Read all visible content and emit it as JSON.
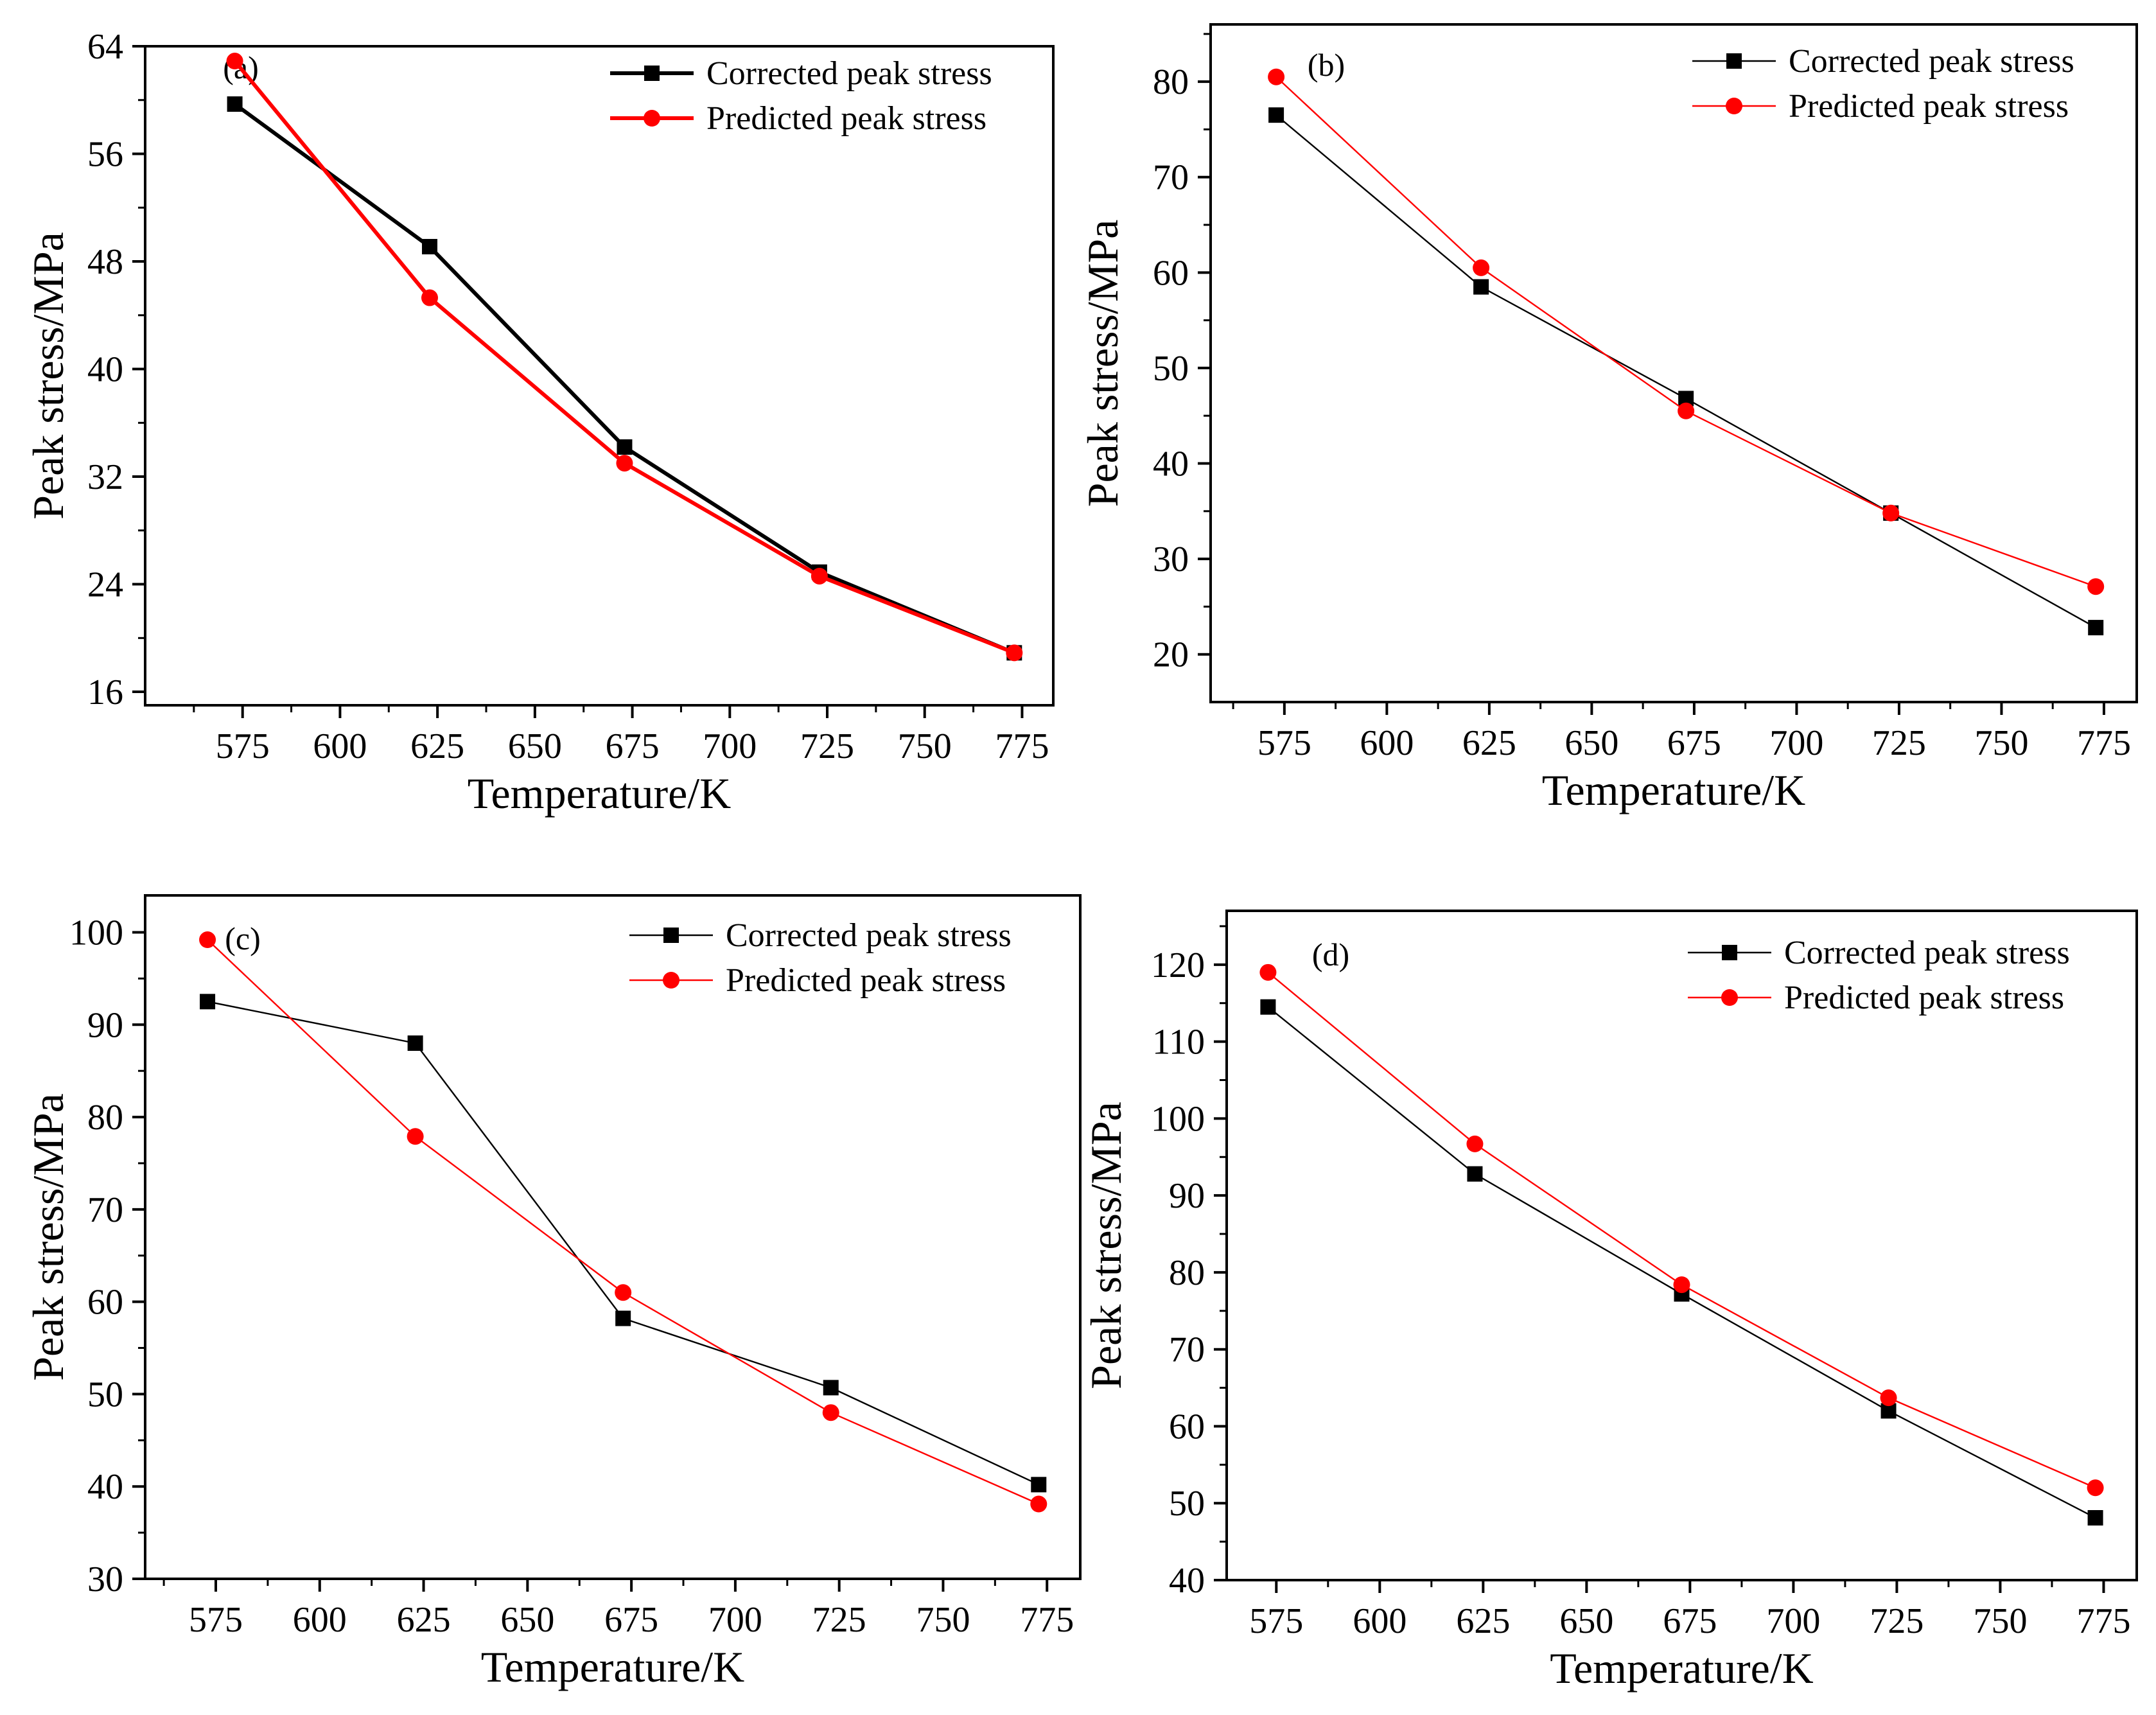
{
  "chart_data": [
    {
      "type": "line",
      "panel_label": "(a)",
      "xlabel": "Temperature/K",
      "ylabel": "Peak stress/MPa",
      "xlim": [
        550,
        783
      ],
      "ylim": [
        15,
        64
      ],
      "xticks": [
        575,
        600,
        625,
        650,
        675,
        700,
        725,
        750,
        775
      ],
      "yticks": [
        16,
        24,
        32,
        40,
        48,
        56,
        64
      ],
      "x": [
        573,
        623,
        673,
        723,
        773
      ],
      "legend_position": "top-right",
      "series": [
        {
          "name": "Corrected peak stress",
          "color": "#000000",
          "marker": "square",
          "values": [
            59.7,
            49.1,
            34.2,
            24.9,
            18.9
          ]
        },
        {
          "name": "Predicted peak stress",
          "color": "#ff0000",
          "marker": "circle",
          "values": [
            62.9,
            45.3,
            33.0,
            24.6,
            18.9
          ]
        }
      ]
    },
    {
      "type": "line",
      "panel_label": "(b)",
      "xlabel": "Temperature/K",
      "ylabel": "Peak stress/MPa",
      "xlim": [
        557,
        783
      ],
      "ylim": [
        15,
        86
      ],
      "xticks": [
        575,
        600,
        625,
        650,
        675,
        700,
        725,
        750,
        775
      ],
      "yticks": [
        20,
        30,
        40,
        50,
        60,
        70,
        80
      ],
      "x": [
        573,
        623,
        673,
        723,
        773
      ],
      "legend_position": "top-right",
      "series": [
        {
          "name": "Corrected peak stress",
          "color": "#000000",
          "marker": "square",
          "values": [
            76.5,
            58.5,
            46.8,
            34.8,
            22.8
          ]
        },
        {
          "name": "Predicted peak stress",
          "color": "#ff0000",
          "marker": "circle",
          "values": [
            80.5,
            60.5,
            45.5,
            34.8,
            27.1
          ]
        }
      ]
    },
    {
      "type": "line",
      "panel_label": "(c)",
      "xlabel": "Temperature/K",
      "ylabel": "Peak stress/MPa",
      "xlim": [
        558,
        783
      ],
      "ylim": [
        30,
        104
      ],
      "xticks": [
        575,
        600,
        625,
        650,
        675,
        700,
        725,
        750,
        775
      ],
      "yticks": [
        30,
        40,
        50,
        60,
        70,
        80,
        90,
        100
      ],
      "x": [
        573,
        623,
        673,
        723,
        773
      ],
      "legend_position": "top-right",
      "series": [
        {
          "name": "Corrected peak stress",
          "color": "#000000",
          "marker": "square",
          "values": [
            92.5,
            88.0,
            58.2,
            50.7,
            40.2
          ]
        },
        {
          "name": "Predicted peak stress",
          "color": "#ff0000",
          "marker": "circle",
          "values": [
            99.2,
            77.9,
            61.0,
            48.0,
            38.1
          ]
        }
      ]
    },
    {
      "type": "line",
      "panel_label": "(d)",
      "xlabel": "Temperature/K",
      "ylabel": "Peak stress/MPa",
      "xlim": [
        563,
        783
      ],
      "ylim": [
        40,
        127
      ],
      "xticks": [
        575,
        600,
        625,
        650,
        675,
        700,
        725,
        750,
        775
      ],
      "yticks": [
        40,
        50,
        60,
        70,
        80,
        90,
        100,
        110,
        120
      ],
      "x": [
        573,
        623,
        673,
        723,
        773
      ],
      "legend_position": "top-right",
      "series": [
        {
          "name": "Corrected peak stress",
          "color": "#000000",
          "marker": "square",
          "values": [
            114.5,
            92.8,
            77.2,
            62.0,
            48.1
          ]
        },
        {
          "name": "Predicted peak stress",
          "color": "#ff0000",
          "marker": "circle",
          "values": [
            119.0,
            96.7,
            78.4,
            63.7,
            52.0
          ]
        }
      ]
    }
  ]
}
